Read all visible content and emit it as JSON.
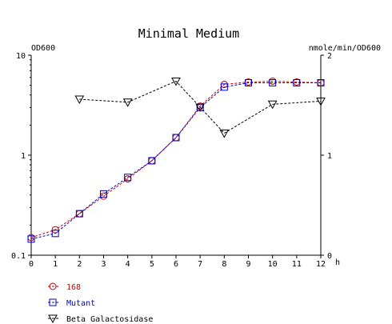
{
  "chart_data": {
    "type": "line",
    "title": "Minimal Medium",
    "y_left_label": "OD600",
    "y_right_label": "nmole/min/OD600",
    "x_unit": "h",
    "x_ticks": [
      "0",
      "1",
      "2",
      "3",
      "4",
      "5",
      "6",
      "7",
      "8",
      "9",
      "10",
      "11",
      "12"
    ],
    "y_left_ticks": [
      "0.1",
      "1",
      "10"
    ],
    "y_right_ticks": [
      "0",
      "1",
      "2"
    ],
    "xlim": [
      0,
      12
    ],
    "y_left_lim": [
      0.1,
      10
    ],
    "y_left_scale": "log",
    "y_right_lim": [
      0,
      2
    ],
    "grid": false,
    "legend_position": "bottom-left",
    "series": [
      {
        "name": "168",
        "axis": "left",
        "marker": "circle",
        "color": "#cc0000",
        "x": [
          0,
          1,
          2,
          3,
          4,
          5,
          6,
          7,
          8,
          9,
          10,
          11,
          12
        ],
        "y": [
          0.15,
          0.18,
          0.26,
          0.39,
          0.58,
          0.88,
          1.5,
          3.1,
          5.1,
          5.4,
          5.5,
          5.4,
          5.3
        ]
      },
      {
        "name": "Mutant",
        "axis": "left",
        "marker": "square",
        "color": "#0000cc",
        "x": [
          0,
          1,
          2,
          3,
          4,
          5,
          6,
          7,
          8,
          9,
          10,
          11,
          12
        ],
        "y": [
          0.145,
          0.165,
          0.26,
          0.41,
          0.6,
          0.88,
          1.5,
          3.0,
          4.8,
          5.3,
          5.3,
          5.3,
          5.3
        ]
      },
      {
        "name": "Beta Galactosidase",
        "axis": "right",
        "marker": "triangle-down",
        "color": "#000000",
        "x": [
          2,
          4,
          6,
          7,
          8,
          10,
          12
        ],
        "y": [
          1.56,
          1.53,
          1.74,
          1.48,
          1.22,
          1.51,
          1.54
        ]
      }
    ]
  }
}
